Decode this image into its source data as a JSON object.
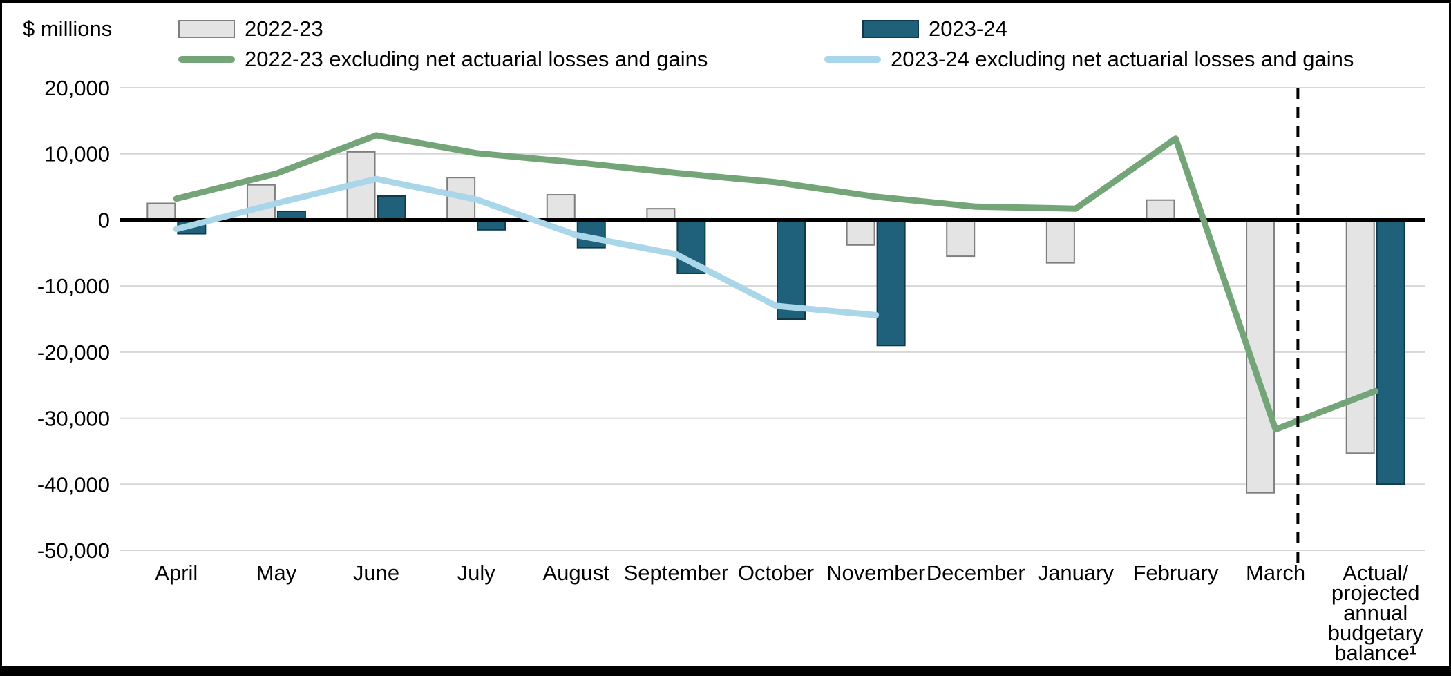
{
  "legend": {
    "items": [
      {
        "label": "2022-23",
        "type": "bar",
        "color": "#e4e4e4",
        "border": "#7f7f7f"
      },
      {
        "label": "2023-24",
        "type": "bar",
        "color": "#1f617b",
        "border": "#0e3a4b"
      },
      {
        "label": "2022-23 excluding net actuarial losses and gains",
        "type": "line",
        "color": "#74a578"
      },
      {
        "label": "2023-24 excluding net actuarial losses and gains",
        "type": "line",
        "color": "#aad6ea"
      }
    ]
  },
  "chart_data": {
    "type": "combo-bar-line",
    "unit": "$ millions",
    "categories": [
      "April",
      "May",
      "June",
      "July",
      "August",
      "September",
      "October",
      "November",
      "December",
      "January",
      "February",
      "March",
      "Actual/\nprojected\nannual\nbudgetary\nbalance¹"
    ],
    "series": [
      {
        "name": "2022-23",
        "type": "bar",
        "color": "#e4e4e4",
        "border": "#7f7f7f",
        "values": [
          2500,
          5300,
          10300,
          6400,
          3800,
          1700,
          -200,
          -3800,
          -5500,
          -6500,
          3000,
          -41300,
          -35300
        ]
      },
      {
        "name": "2023-24",
        "type": "bar",
        "color": "#1f617b",
        "border": "#0e3a4b",
        "values": [
          -2100,
          1300,
          3600,
          -1500,
          -4200,
          -8100,
          -15000,
          -19000,
          null,
          null,
          null,
          null,
          -40000
        ]
      },
      {
        "name": "2022-23 excluding net actuarial losses and gains",
        "type": "line",
        "color": "#74a578",
        "values": [
          3200,
          7000,
          12800,
          10100,
          8700,
          7100,
          5700,
          3500,
          2000,
          1700,
          12300,
          -31700,
          -25900
        ]
      },
      {
        "name": "2023-24 excluding net actuarial losses and gains",
        "type": "line",
        "color": "#aad6ea",
        "values": [
          -1400,
          2500,
          6200,
          3100,
          -2300,
          -5200,
          -13000,
          -14400,
          null,
          null,
          null,
          null,
          null
        ]
      }
    ],
    "ylim": [
      -50000,
      20000
    ],
    "yticks": [
      20000,
      10000,
      0,
      -10000,
      -20000,
      -30000,
      -40000,
      -50000
    ],
    "ytick_labels": [
      "20,000",
      "10,000",
      "0",
      "-10,000",
      "-20,000",
      "-30,000",
      "-40,000",
      "-50,000"
    ],
    "grid": true,
    "colors": {
      "grid": "#d6d6d6",
      "zero_axis": "#000000",
      "divider": "#000000"
    },
    "divider_after_category": "March",
    "legend_position": "top"
  }
}
